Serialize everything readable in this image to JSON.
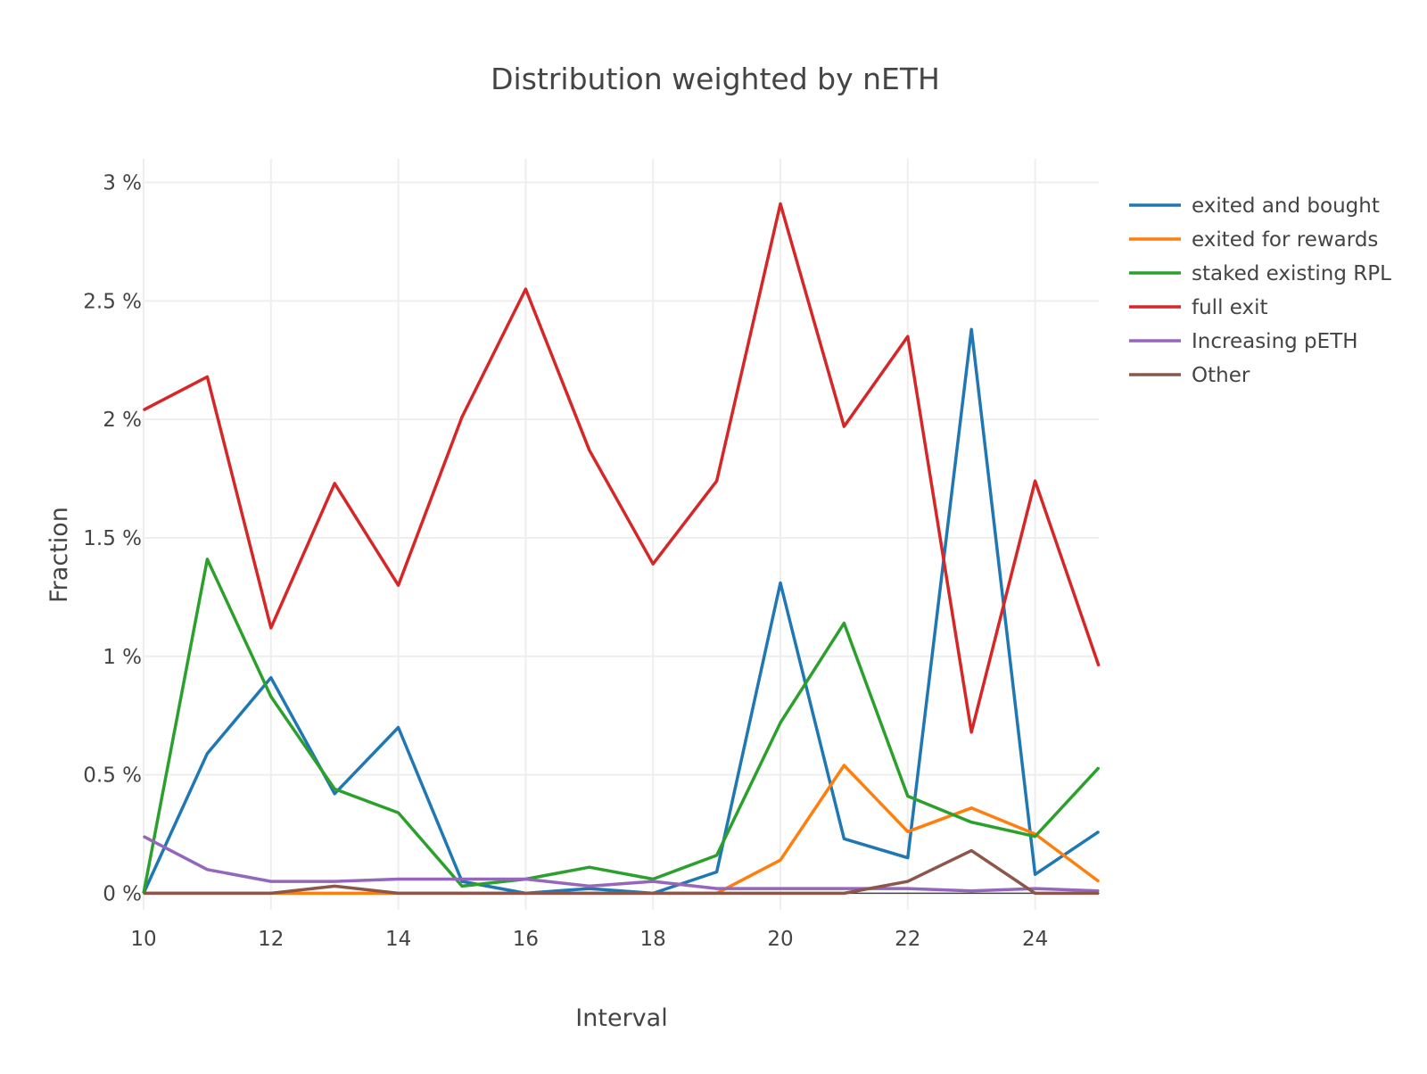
{
  "chart_data": {
    "type": "line",
    "title": "Distribution weighted by nETH",
    "xlabel": "Interval",
    "ylabel": "Fraction",
    "xlim": [
      10,
      25
    ],
    "ylim": [
      -0.0007,
      0.031
    ],
    "x_ticks": [
      10,
      12,
      14,
      16,
      18,
      20,
      22,
      24
    ],
    "y_ticks": [
      0,
      0.005,
      0.01,
      0.015,
      0.02,
      0.025,
      0.03
    ],
    "y_tick_labels": [
      "0 %",
      "0.5 %",
      "1 %",
      "1.5 %",
      "2 %",
      "2.5 %",
      "3 %"
    ],
    "grid": true,
    "legend_position": "right",
    "x": [
      10,
      11,
      12,
      13,
      14,
      15,
      16,
      17,
      18,
      19,
      20,
      21,
      22,
      23,
      24,
      25
    ],
    "series": [
      {
        "name": "exited and bought",
        "color": "#1f77b4",
        "values": [
          0.0,
          0.0059,
          0.0091,
          0.0042,
          0.007,
          0.0005,
          0.0,
          0.0002,
          0.0,
          0.0009,
          0.0131,
          0.0023,
          0.0015,
          0.0238,
          0.0008,
          0.0026
        ]
      },
      {
        "name": "exited for rewards",
        "color": "#ff7f0e",
        "values": [
          0.0,
          0.0,
          0.0,
          0.0,
          0.0,
          0.0,
          0.0,
          0.0,
          0.0,
          0.0,
          0.0014,
          0.0054,
          0.0026,
          0.0036,
          0.0025,
          0.0005
        ]
      },
      {
        "name": "staked existing RPL",
        "color": "#2ca02c",
        "values": [
          0.0,
          0.0141,
          0.0083,
          0.0044,
          0.0034,
          0.0003,
          0.0006,
          0.0011,
          0.0006,
          0.0016,
          0.0072,
          0.0114,
          0.0041,
          0.003,
          0.0024,
          0.0053
        ]
      },
      {
        "name": "full exit",
        "color": "#d62728",
        "values": [
          0.0204,
          0.0218,
          0.0112,
          0.0173,
          0.013,
          0.0201,
          0.0255,
          0.0187,
          0.0139,
          0.0174,
          0.0291,
          0.0197,
          0.0235,
          0.0068,
          0.0174,
          0.0096
        ]
      },
      {
        "name": "Increasing pETH",
        "color": "#9467bd",
        "values": [
          0.0024,
          0.001,
          0.0005,
          0.0005,
          0.0006,
          0.0006,
          0.0006,
          0.0003,
          0.0005,
          0.0002,
          0.0002,
          0.0002,
          0.0002,
          0.0001,
          0.0002,
          0.0001
        ]
      },
      {
        "name": "Other",
        "color": "#8c564b",
        "values": [
          0.0,
          0.0,
          0.0,
          0.0003,
          0.0,
          0.0,
          0.0,
          0.0,
          0.0,
          0.0,
          0.0,
          0.0,
          0.0005,
          0.0018,
          0.0,
          0.0
        ]
      }
    ]
  }
}
